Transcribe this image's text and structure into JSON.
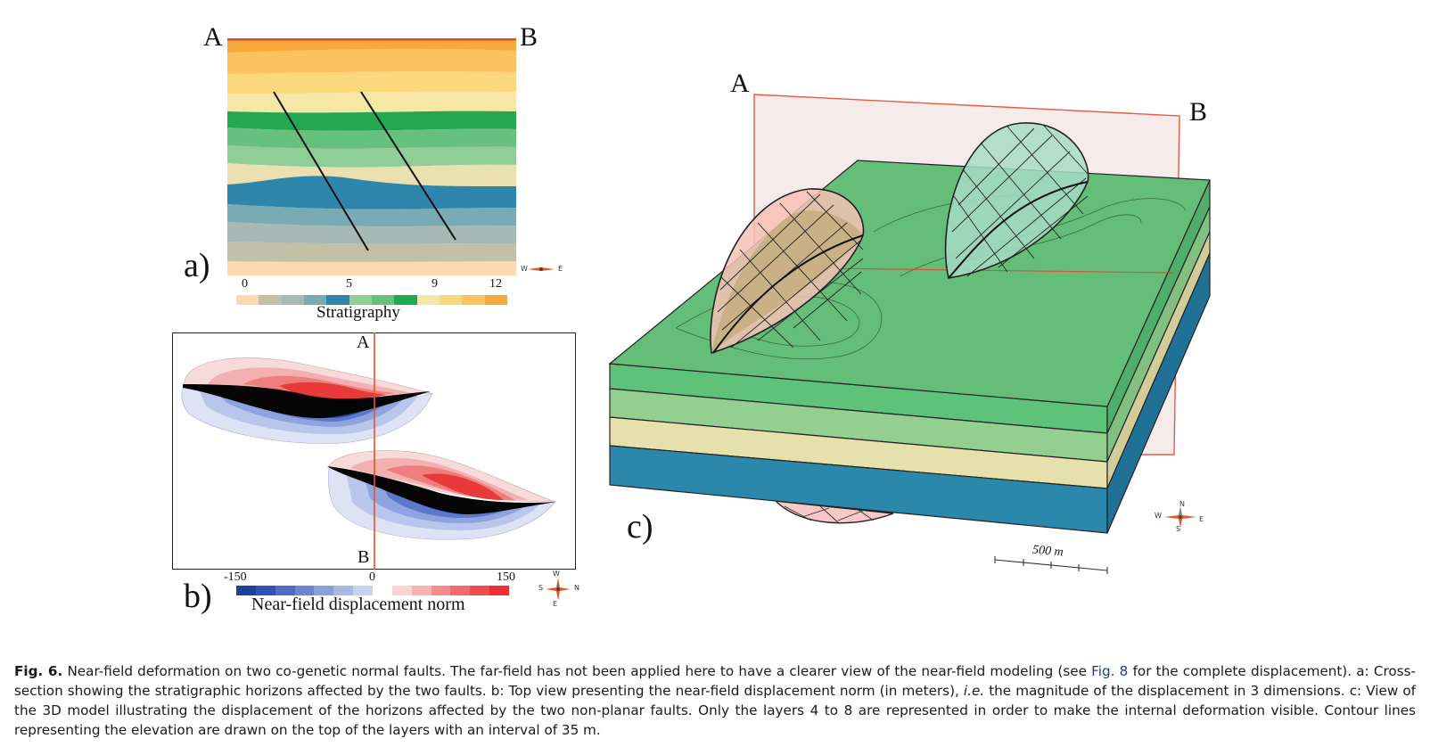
{
  "panel_a": {
    "label": "a)",
    "point_a": "A",
    "point_b": "B",
    "ticks": [
      "0",
      "5",
      "9",
      "12"
    ],
    "legend_title": "Stratigraphy",
    "strat_colors": [
      "#fcd9b0",
      "#c4bfa7",
      "#a7b9b4",
      "#7aaab4",
      "#2e86ad",
      "#8fcf97",
      "#66c07e",
      "#23a852",
      "#f6e7a6",
      "#fbd77e",
      "#fbc35f",
      "#f8a93d"
    ],
    "compass": {
      "w": "W",
      "e": "E"
    }
  },
  "panel_b": {
    "label": "b)",
    "point_a": "A",
    "point_b": "B",
    "ticks": [
      "-150",
      "0",
      "150"
    ],
    "legend_title": "Near-field displacement norm",
    "disp_colors": [
      "#1e3f9e",
      "#3153b7",
      "#4d6cc6",
      "#6a86d2",
      "#8aa0dc",
      "#a9b9e6",
      "#c8d3ef",
      "#ffffff",
      "#fbd3d3",
      "#f9b3b3",
      "#f68d8d",
      "#f46b6b",
      "#f24b4b",
      "#f03030"
    ],
    "compass": {
      "n": "N",
      "s": "S",
      "w": "W",
      "e": "E"
    }
  },
  "panel_c": {
    "label": "c)",
    "point_a": "A",
    "point_b": "B",
    "scale_label": "500 m",
    "compass": {
      "n": "N",
      "s": "S",
      "w": "W",
      "e": "E"
    }
  },
  "caption": {
    "fig_label": "Fig. 6.",
    "part1": " Near-field deformation on two co-genetic normal faults. The far-field has not been applied here to have a clearer view of the near-field modeling (see ",
    "ref": "Fig. 8",
    "part2": " for the complete displacement). a: Cross-section showing the stratigraphic horizons affected by the two faults. b: Top view presenting the near-field displacement norm (in meters), ",
    "ie": "i.e.",
    "part3": " the magnitude of the displacement in 3 dimensions. c: View of the 3D model illustrating the displacement of the horizons affected by the two non-planar faults. Only the layers 4 to 8 are represented in order to make the internal deformation visible. Contour lines representing the elevation are drawn on the top of the layers with an interval of 35 m."
  }
}
